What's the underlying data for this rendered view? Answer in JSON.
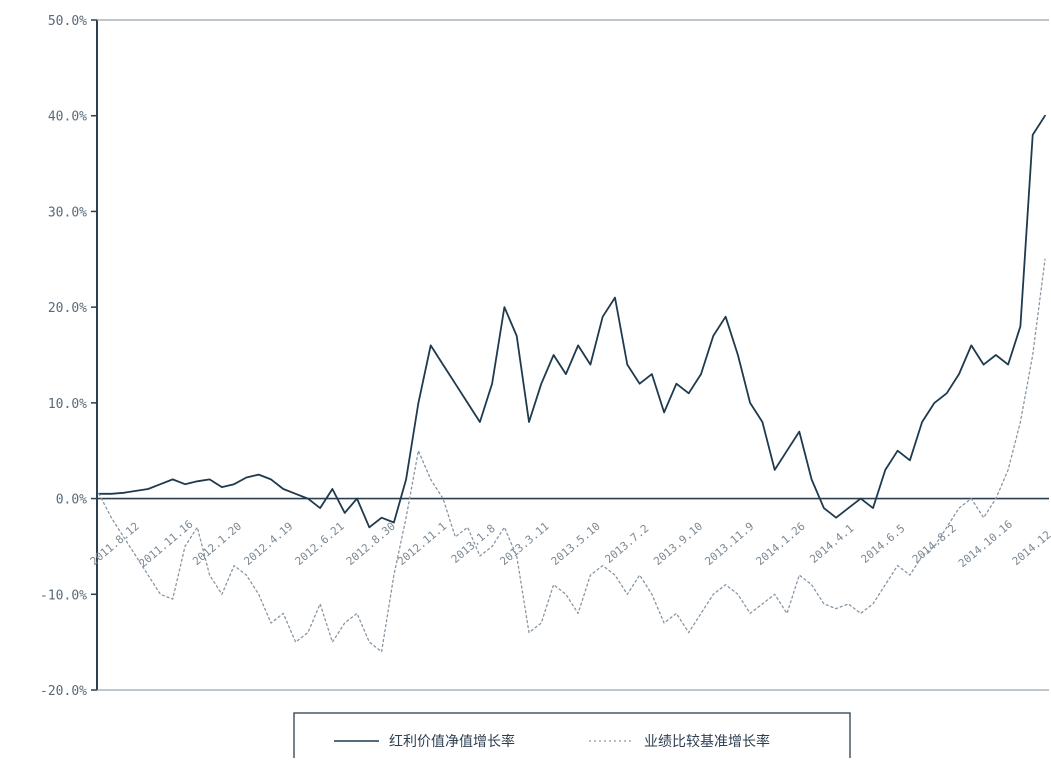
{
  "chart_data": {
    "type": "line",
    "title": "",
    "xlabel": "",
    "ylabel": "",
    "ylim": [
      -20,
      50
    ],
    "y_ticks": [
      "50.0%",
      "40.0%",
      "30.0%",
      "20.0%",
      "10.0%",
      "0.0%",
      "-10.0%",
      "-20.0%"
    ],
    "x_tick_labels": [
      "2011.8.12",
      "2011.11.16",
      "2012.1.20",
      "2012.4.19",
      "2012.6.21",
      "2012.8.30",
      "2012.11.1",
      "2013.1.8",
      "2013.3.11",
      "2013.5.10",
      "2013.7.2",
      "2013.9.10",
      "2013.11.9",
      "2014.1.26",
      "2014.4.1",
      "2014.6.5",
      "2014.8.2",
      "2014.10.16",
      "2014.12.1"
    ],
    "grid": false,
    "legend_position": "bottom",
    "series": [
      {
        "name": "红利价值净值增长率",
        "style": "solid",
        "color": "#1f3a4d",
        "values": [
          0.5,
          0.5,
          0.6,
          0.8,
          1.0,
          1.5,
          2.0,
          1.5,
          1.8,
          2.0,
          1.2,
          1.5,
          2.2,
          2.5,
          2.0,
          1.0,
          0.5,
          0,
          -1.0,
          1.0,
          -1.5,
          0,
          -3.0,
          -2.0,
          -2.5,
          2.0,
          10.0,
          16.0,
          14.0,
          12.0,
          10.0,
          8.0,
          12.0,
          20.0,
          17.0,
          8.0,
          12.0,
          15.0,
          13.0,
          16.0,
          14.0,
          19.0,
          21.0,
          14.0,
          12.0,
          13.0,
          9.0,
          12.0,
          11.0,
          13.0,
          17.0,
          19.0,
          15.0,
          10.0,
          8.0,
          3.0,
          5.0,
          7.0,
          2.0,
          -1.0,
          -2.0,
          -1.0,
          0,
          -1.0,
          3.0,
          5.0,
          4.0,
          8.0,
          10.0,
          11.0,
          13.0,
          16.0,
          14.0,
          15.0,
          14.0,
          18.0,
          38.0,
          40.0
        ]
      },
      {
        "name": "业绩比较基准增长率",
        "style": "dotted",
        "color": "#8796a3",
        "values": [
          0.5,
          -2.0,
          -4.0,
          -6.0,
          -8.0,
          -10.0,
          -10.5,
          -5.0,
          -3.0,
          -8.0,
          -10.0,
          -7.0,
          -8.0,
          -10.0,
          -13.0,
          -12.0,
          -15.0,
          -14.0,
          -11.0,
          -15.0,
          -13.0,
          -12.0,
          -15.0,
          -16.0,
          -8.0,
          -2.0,
          5.0,
          2.0,
          0,
          -4.0,
          -3.0,
          -6.0,
          -5.0,
          -3.0,
          -6.0,
          -14.0,
          -13.0,
          -9.0,
          -10.0,
          -12.0,
          -8.0,
          -7.0,
          -8.0,
          -10.0,
          -8.0,
          -10.0,
          -13.0,
          -12.0,
          -14.0,
          -12.0,
          -10.0,
          -9.0,
          -10.0,
          -12.0,
          -11.0,
          -10.0,
          -12.0,
          -8.0,
          -9.0,
          -11.0,
          -11.5,
          -11.0,
          -12.0,
          -11.0,
          -9.0,
          -7.0,
          -8.0,
          -6.0,
          -5.0,
          -3.0,
          -1.0,
          0,
          -2.0,
          0,
          3.0,
          8.0,
          15.0,
          25.0
        ]
      }
    ]
  }
}
